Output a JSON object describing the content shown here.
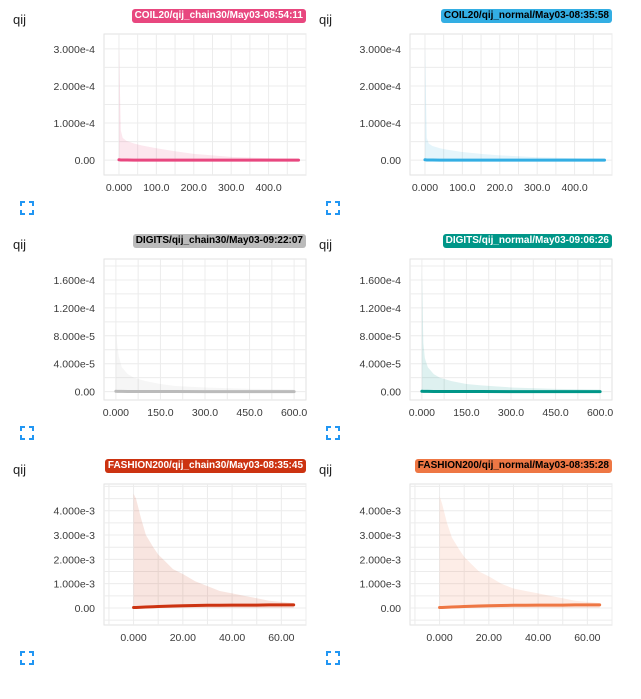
{
  "charts": [
    {
      "title": "qij",
      "run": "COIL20/qij_chain30/May03-08:54:11",
      "color": "#e8477f",
      "tag_text_color": "#ffffff",
      "expand_icon": "fullscreen-icon"
    },
    {
      "title": "qij",
      "run": "COIL20/qij_normal/May03-08:35:58",
      "color": "#33aee3",
      "tag_text_color": "#000000",
      "expand_icon": "fullscreen-icon"
    },
    {
      "title": "qij",
      "run": "DIGITS/qij_chain30/May03-09:22:07",
      "color": "#bbbbbb",
      "tag_text_color": "#000000",
      "expand_icon": "fullscreen-icon"
    },
    {
      "title": "qij",
      "run": "DIGITS/qij_normal/May03-09:06:26",
      "color": "#009688",
      "tag_text_color": "#ffffff",
      "expand_icon": "fullscreen-icon"
    },
    {
      "title": "qij",
      "run": "FASHION200/qij_chain30/May03-08:35:45",
      "color": "#cc3311",
      "tag_text_color": "#ffffff",
      "expand_icon": "fullscreen-icon"
    },
    {
      "title": "qij",
      "run": "FASHION200/qij_normal/May03-08:35:28",
      "color": "#ee7744",
      "tag_text_color": "#000000",
      "expand_icon": "fullscreen-icon"
    }
  ],
  "chart_data": [
    {
      "type": "area",
      "title": "qij",
      "xlim": [
        -40,
        500
      ],
      "ylim": [
        -4e-05,
        0.00034
      ],
      "xticks": [
        0,
        100,
        200,
        300,
        400
      ],
      "xtick_labels": [
        "0.000",
        "100.0",
        "200.0",
        "300.0",
        "400.0"
      ],
      "yticks": [
        0,
        0.0001,
        0.0002,
        0.0003
      ],
      "ytick_labels": [
        "0.00",
        "1.000e-4",
        "2.000e-4",
        "3.000e-4"
      ],
      "grid": true,
      "series": [
        {
          "name": "COIL20/qij_chain30/May03-08:54:11",
          "x": [
            0,
            5,
            10,
            20,
            40,
            60,
            100,
            150,
            200,
            300,
            400,
            480
          ],
          "max": [
            0.00031,
            8e-05,
            6e-05,
            5.2e-05,
            4.5e-05,
            4e-05,
            3.2e-05,
            2.4e-05,
            1.7e-05,
            9e-06,
            5e-06,
            3e-06
          ],
          "min": [
            0,
            0,
            0,
            0,
            0,
            0,
            0,
            0,
            0,
            0,
            0,
            0
          ],
          "median": [
            1e-06,
            5e-07,
            4e-07,
            3e-07,
            2e-07,
            2e-07,
            1e-07,
            1e-07,
            1e-07,
            0,
            0,
            0
          ]
        }
      ]
    },
    {
      "type": "area",
      "title": "qij",
      "xlim": [
        -40,
        500
      ],
      "ylim": [
        -4e-05,
        0.00034
      ],
      "xticks": [
        0,
        100,
        200,
        300,
        400
      ],
      "xtick_labels": [
        "0.000",
        "100.0",
        "200.0",
        "300.0",
        "400.0"
      ],
      "yticks": [
        0,
        0.0001,
        0.0002,
        0.0003
      ],
      "ytick_labels": [
        "0.00",
        "1.000e-4",
        "2.000e-4",
        "3.000e-4"
      ],
      "grid": true,
      "series": [
        {
          "name": "COIL20/qij_normal/May03-08:35:58",
          "x": [
            0,
            5,
            10,
            20,
            40,
            60,
            100,
            150,
            200,
            300,
            400,
            480
          ],
          "max": [
            0.00031,
            6e-05,
            4.5e-05,
            3.8e-05,
            3.2e-05,
            2.8e-05,
            2.2e-05,
            1.7e-05,
            1.3e-05,
            8e-06,
            5e-06,
            3e-06
          ],
          "min": [
            0,
            0,
            0,
            0,
            0,
            0,
            0,
            0,
            0,
            0,
            0,
            0
          ],
          "median": [
            1e-06,
            5e-07,
            4e-07,
            3e-07,
            2e-07,
            2e-07,
            1e-07,
            1e-07,
            1e-07,
            0,
            0,
            0
          ]
        }
      ]
    },
    {
      "type": "area",
      "title": "qij",
      "xlim": [
        -40,
        640
      ],
      "ylim": [
        -1.2e-05,
        0.00019
      ],
      "xticks": [
        0,
        150,
        300,
        450,
        600
      ],
      "xtick_labels": [
        "0.000",
        "150.0",
        "300.0",
        "450.0",
        "600.0"
      ],
      "yticks": [
        0,
        4e-05,
        8e-05,
        0.00012,
        0.00016
      ],
      "ytick_labels": [
        "0.00",
        "4.000e-5",
        "8.000e-5",
        "1.200e-4",
        "1.600e-4"
      ],
      "grid": true,
      "series": [
        {
          "name": "DIGITS/qij_chain30/May03-09:22:07",
          "x": [
            0,
            5,
            10,
            20,
            40,
            60,
            100,
            150,
            200,
            300,
            450,
            600
          ],
          "max": [
            9e-05,
            6.5e-05,
            5e-05,
            3.5e-05,
            2.5e-05,
            2e-05,
            1.5e-05,
            1.1e-05,
            8e-06,
            6e-06,
            4e-06,
            3e-06
          ],
          "min": [
            0,
            0,
            0,
            0,
            0,
            0,
            0,
            0,
            0,
            0,
            0,
            0
          ],
          "median": [
            5e-07,
            4e-07,
            3e-07,
            3e-07,
            2e-07,
            2e-07,
            1e-07,
            1e-07,
            1e-07,
            0,
            0,
            0
          ]
        }
      ]
    },
    {
      "type": "area",
      "title": "qij",
      "xlim": [
        -40,
        640
      ],
      "ylim": [
        -1.2e-05,
        0.00019
      ],
      "xticks": [
        0,
        150,
        300,
        450,
        600
      ],
      "xtick_labels": [
        "0.000",
        "150.0",
        "300.0",
        "450.0",
        "600.0"
      ],
      "yticks": [
        0,
        4e-05,
        8e-05,
        0.00012,
        0.00016
      ],
      "ytick_labels": [
        "0.00",
        "4.000e-5",
        "8.000e-5",
        "1.200e-4",
        "1.600e-4"
      ],
      "grid": true,
      "series": [
        {
          "name": "DIGITS/qij_normal/May03-09:06:26",
          "x": [
            0,
            5,
            10,
            20,
            40,
            60,
            100,
            150,
            200,
            300,
            450,
            600
          ],
          "max": [
            0.000175,
            7e-05,
            4.8e-05,
            3.5e-05,
            2.5e-05,
            2e-05,
            1.5e-05,
            1.1e-05,
            9e-06,
            6e-06,
            4e-06,
            3e-06
          ],
          "min": [
            0,
            0,
            0,
            0,
            0,
            0,
            0,
            0,
            0,
            0,
            0,
            0
          ],
          "median": [
            5e-07,
            4e-07,
            3e-07,
            3e-07,
            2e-07,
            2e-07,
            1e-07,
            1e-07,
            1e-07,
            0,
            0,
            0
          ]
        }
      ]
    },
    {
      "type": "area",
      "title": "qij",
      "xlim": [
        -12,
        70
      ],
      "ylim": [
        -0.0007,
        0.0051
      ],
      "xticks": [
        0,
        20,
        40,
        60
      ],
      "xtick_labels": [
        "0.000",
        "20.00",
        "40.00",
        "60.00"
      ],
      "yticks": [
        0,
        0.001,
        0.002,
        0.003,
        0.004
      ],
      "ytick_labels": [
        "0.00",
        "1.000e-3",
        "2.000e-3",
        "3.000e-3",
        "4.000e-3"
      ],
      "grid": true,
      "series": [
        {
          "name": "FASHION200/qij_chain30/May03-08:35:45",
          "x": [
            0,
            1,
            3,
            5,
            8,
            10,
            13,
            16,
            20,
            25,
            30,
            35,
            40,
            45,
            50,
            55,
            60,
            65
          ],
          "max": [
            0.0047,
            0.0045,
            0.0037,
            0.003,
            0.0025,
            0.0022,
            0.0019,
            0.0016,
            0.0014,
            0.0011,
            0.0009,
            0.0007,
            0.0006,
            0.0005,
            0.0004,
            0.0003,
            0.00025,
            0.0002
          ],
          "min": [
            0,
            0,
            0,
            0,
            0,
            0,
            0,
            0,
            0,
            0,
            0,
            0,
            0,
            0,
            0,
            0,
            0,
            0
          ],
          "median": [
            2e-05,
            2e-05,
            3e-05,
            4e-05,
            5e-05,
            6e-05,
            7e-05,
            8e-05,
            9e-05,
            0.0001,
            0.00011,
            0.00011,
            0.00012,
            0.00012,
            0.00012,
            0.00013,
            0.00013,
            0.00013
          ]
        }
      ]
    },
    {
      "type": "area",
      "title": "qij",
      "xlim": [
        -12,
        70
      ],
      "ylim": [
        -0.0007,
        0.0051
      ],
      "xticks": [
        0,
        20,
        40,
        60
      ],
      "xtick_labels": [
        "0.000",
        "20.00",
        "40.00",
        "60.00"
      ],
      "yticks": [
        0,
        0.001,
        0.002,
        0.003,
        0.004
      ],
      "ytick_labels": [
        "0.00",
        "1.000e-3",
        "2.000e-3",
        "3.000e-3",
        "4.000e-3"
      ],
      "grid": true,
      "series": [
        {
          "name": "FASHION200/qij_normal/May03-08:35:28",
          "x": [
            0,
            1,
            3,
            5,
            8,
            10,
            13,
            16,
            20,
            25,
            30,
            35,
            40,
            45,
            50,
            55,
            60,
            65
          ],
          "max": [
            0.0046,
            0.0043,
            0.0035,
            0.0029,
            0.0024,
            0.0021,
            0.0018,
            0.0015,
            0.0013,
            0.001,
            0.0008,
            0.0007,
            0.0006,
            0.0005,
            0.0004,
            0.0003,
            0.00025,
            0.0002
          ],
          "min": [
            0,
            0,
            0,
            0,
            0,
            0,
            0,
            0,
            0,
            0,
            0,
            0,
            0,
            0,
            0,
            0,
            0,
            0
          ],
          "median": [
            2e-05,
            2e-05,
            3e-05,
            4e-05,
            5e-05,
            6e-05,
            7e-05,
            8e-05,
            9e-05,
            0.0001,
            0.00011,
            0.00011,
            0.00012,
            0.00012,
            0.00012,
            0.00013,
            0.00013,
            0.00013
          ]
        }
      ]
    }
  ]
}
